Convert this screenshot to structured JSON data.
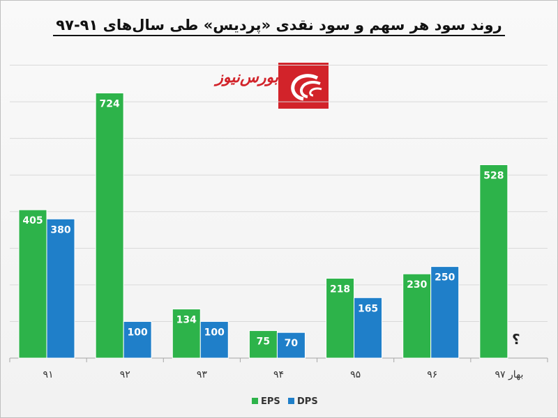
{
  "title": "روند سود هر سهم و سود نقدی «پردیس» طی سال‌های ۹۱-۹۷",
  "logo": {
    "text": "بورس‌نیوز"
  },
  "chart_data": {
    "type": "bar",
    "title": "روند سود هر سهم و سود نقدی «پردیس» طی سال‌های ۹۱-۹۷",
    "categories": [
      "۹۱",
      "۹۲",
      "۹۳",
      "۹۴",
      "۹۵",
      "۹۶",
      "بهار ۹۷"
    ],
    "series": [
      {
        "name": "EPS",
        "color": "#2db34a",
        "values": [
          405,
          724,
          134,
          75,
          218,
          230,
          528
        ]
      },
      {
        "name": "DPS",
        "color": "#1f7fc9",
        "values": [
          380,
          100,
          100,
          70,
          165,
          250,
          null
        ]
      }
    ],
    "missing_label": "؟",
    "ylim": [
      0,
      860
    ],
    "grid": true,
    "legend_position": "bottom"
  }
}
